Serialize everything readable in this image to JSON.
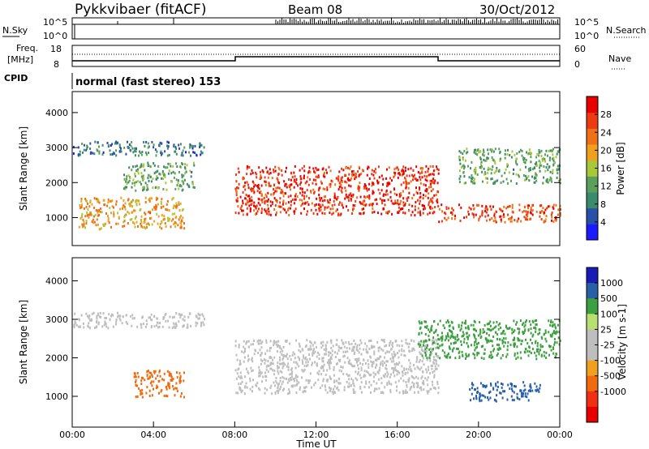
{
  "header": {
    "title": "Pykkvibaer (fitACF)",
    "beam": "Beam 08",
    "date": "30/Oct/2012"
  },
  "status_panels": {
    "nsky_label": "N.Sky",
    "nsearch_label": "N.Search",
    "nsky_ticks": [
      "10^5",
      "10^0"
    ],
    "nsearch_ticks": [
      "10^5",
      "10^0"
    ],
    "freq_label_line1": "Freq.",
    "freq_label_line2": "[MHz]",
    "freq_ticks": [
      "18",
      "8"
    ],
    "nave_label": "Nave",
    "nave_ticks": [
      "60",
      "0"
    ],
    "cpid_label": "CPID",
    "cpid_text": "normal (fast stereo) 153"
  },
  "colors": {
    "power_scale": [
      "#1a1aff",
      "#2a4fa8",
      "#3a8a6e",
      "#5aa05a",
      "#a8c83a",
      "#f0a020",
      "#f07018",
      "#ee3a10",
      "#e60000"
    ],
    "velocity_scale": [
      "#e60000",
      "#f03010",
      "#f06a10",
      "#f0a020",
      "#bebebe",
      "#bebebe",
      "#b8e070",
      "#3ca040",
      "#2860a8",
      "#1a1ab4"
    ],
    "ground_scatter": "#bebebe"
  },
  "chart_data": [
    {
      "type": "heatmap",
      "panel": "power",
      "ylabel": "Slant Range [km]",
      "yticks": [
        "1000",
        "2000",
        "3000",
        "4000"
      ],
      "ylim": [
        200,
        4600
      ],
      "xlim_hours": [
        0,
        24
      ],
      "colorbar_label": "Power [dB]",
      "colorbar_ticks": [
        "4",
        "8",
        "12",
        "16",
        "20",
        "24",
        "28"
      ],
      "colorbar_range": [
        0,
        32
      ],
      "echo_regions": [
        {
          "t_start": 0.0,
          "t_end": 6.5,
          "range_min": 2800,
          "range_max": 3200,
          "power_db": 8
        },
        {
          "t_start": 0.3,
          "t_end": 5.5,
          "range_min": 700,
          "range_max": 1600,
          "power_db": 20
        },
        {
          "t_start": 2.5,
          "t_end": 6.0,
          "range_min": 1800,
          "range_max": 2600,
          "power_db": 12
        },
        {
          "t_start": 8.0,
          "t_end": 18.0,
          "range_min": 1100,
          "range_max": 2500,
          "power_db": 28
        },
        {
          "t_start": 18.0,
          "t_end": 24.0,
          "range_min": 900,
          "range_max": 1400,
          "power_db": 26
        },
        {
          "t_start": 19.0,
          "t_end": 24.0,
          "range_min": 2000,
          "range_max": 3000,
          "power_db": 12
        }
      ]
    },
    {
      "type": "heatmap",
      "panel": "velocity",
      "ylabel": "Slant Range [km]",
      "xlabel": "Time UT",
      "yticks": [
        "1000",
        "2000",
        "3000",
        "4000"
      ],
      "ylim": [
        200,
        4600
      ],
      "xticks": [
        "00:00",
        "04:00",
        "08:00",
        "12:00",
        "16:00",
        "20:00",
        "00:00"
      ],
      "xlim_hours": [
        0,
        24
      ],
      "colorbar_label": "Velocity [m s-1]",
      "colorbar_ticks": [
        "1000",
        "500",
        "100",
        "25",
        "-25",
        "-100",
        "-500",
        "-1000"
      ],
      "echo_regions": [
        {
          "t_start": 0.0,
          "t_end": 6.5,
          "range_min": 2800,
          "range_max": 3200,
          "velocity": 0
        },
        {
          "t_start": 3.0,
          "t_end": 5.5,
          "range_min": 1000,
          "range_max": 1700,
          "velocity": -300
        },
        {
          "t_start": 8.0,
          "t_end": 18.0,
          "range_min": 1100,
          "range_max": 2500,
          "velocity": 0
        },
        {
          "t_start": 19.5,
          "t_end": 23.0,
          "range_min": 900,
          "range_max": 1400,
          "velocity": 800
        },
        {
          "t_start": 17.0,
          "t_end": 24.0,
          "range_min": 2000,
          "range_max": 3000,
          "velocity": 300
        }
      ]
    }
  ]
}
